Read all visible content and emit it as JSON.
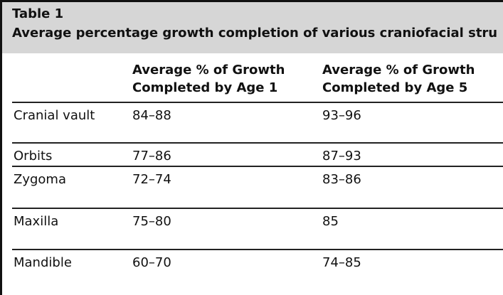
{
  "table": {
    "label": "Table 1",
    "caption": "Average percentage growth completion of various craniofacial stru",
    "columns": [
      "",
      "Average % of Growth Completed by Age 1",
      "Average % of Growth Completed by Age 5"
    ],
    "column_lines": [
      [
        "",
        ""
      ],
      [
        "Average % of Growth",
        "Completed by Age 1"
      ],
      [
        "Average % of Growth",
        "Completed by Age 5"
      ]
    ],
    "rows": [
      [
        "Cranial vault",
        "84–88",
        "93–96"
      ],
      [
        "Orbits",
        "77–86",
        "87–93"
      ],
      [
        "Zygoma",
        "72–74",
        "83–86"
      ],
      [
        "Maxilla",
        "75–80",
        "85"
      ],
      [
        "Mandible",
        "60–70",
        "74–85"
      ]
    ]
  },
  "colors": {
    "header_band": "#d6d6d6",
    "rule": "#222222",
    "frame": "#111111",
    "text": "#111111"
  }
}
